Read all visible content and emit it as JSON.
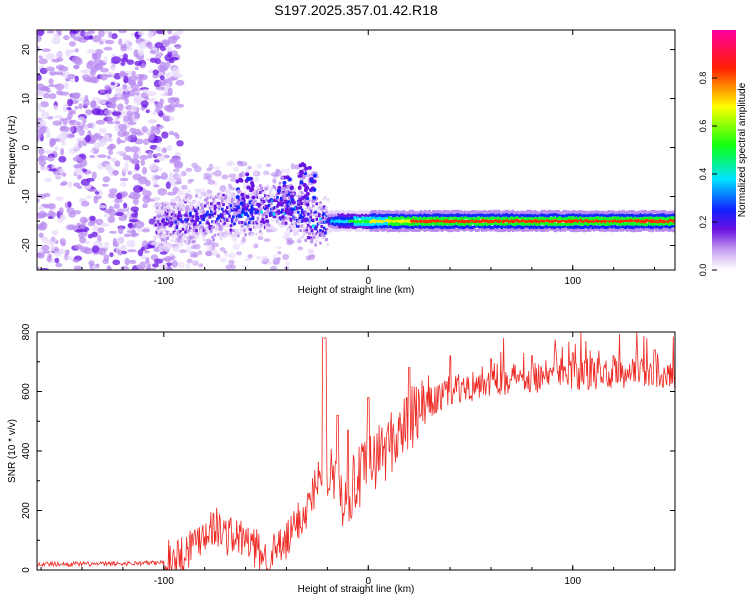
{
  "title": "S197.2025.357.01.42.R18",
  "colors": {
    "snr_line": "#ee2a24",
    "axis": "#000000",
    "background": "#ffffff"
  },
  "chart_data": [
    {
      "type": "heatmap",
      "xlabel": "Height of straight line (km)",
      "ylabel": "Frequency (Hz)",
      "xlim": [
        -162,
        150
      ],
      "ylim": [
        -25,
        24
      ],
      "xticks": [
        -100,
        0,
        100
      ],
      "yticks": [
        20,
        10,
        0,
        -10,
        -20
      ],
      "colorbar": {
        "label": "Normalized spectral amplitude",
        "range": [
          0,
          1
        ],
        "ticks": [
          0,
          0.2,
          0.4,
          0.6,
          0.8
        ],
        "tick_labels": [
          "0.0",
          "0.2",
          "0.4",
          "0.6",
          "0.8"
        ],
        "colormap": [
          "#ffffff",
          "#8a2be2",
          "#0000ff",
          "#00ffff",
          "#00ff00",
          "#ffff00",
          "#ff0000",
          "#ff00aa"
        ]
      },
      "ridge": {
        "description_points_x": [
          -100,
          -80,
          -60,
          -40,
          -30,
          -20,
          0,
          20,
          60,
          100,
          150
        ],
        "frequency_hz": [
          -15,
          -14,
          -13,
          -12,
          -15,
          -15,
          -15,
          -15,
          -15,
          -15,
          -15
        ],
        "peak_amplitude": [
          0.25,
          0.3,
          0.3,
          0.35,
          0.3,
          0.4,
          0.7,
          0.85,
          0.9,
          0.95,
          0.95
        ]
      }
    },
    {
      "type": "line",
      "xlabel": "Height of straight line (km)",
      "ylabel": "SNR (10 * v/v)",
      "xlim": [
        -162,
        150
      ],
      "ylim": [
        0,
        800
      ],
      "xticks": [
        -100,
        0,
        100
      ],
      "yticks": [
        0,
        200,
        400,
        600,
        800
      ],
      "series": [
        {
          "name": "SNR",
          "x": [
            -162,
            -130,
            -100,
            -90,
            -80,
            -75,
            -70,
            -60,
            -50,
            -40,
            -35,
            -30,
            -25,
            -20,
            -15,
            -10,
            -5,
            0,
            10,
            20,
            30,
            40,
            50,
            60,
            80,
            100,
            120,
            140,
            150
          ],
          "y": [
            20,
            20,
            25,
            60,
            130,
            150,
            120,
            100,
            40,
            90,
            160,
            200,
            300,
            350,
            250,
            260,
            300,
            350,
            420,
            500,
            560,
            600,
            620,
            640,
            650,
            655,
            660,
            665,
            665
          ],
          "spike_x": [
            -22,
            -21,
            -15,
            -10,
            0,
            20,
            40,
            60,
            80,
            100,
            120,
            140
          ],
          "spike_y": [
            780,
            780,
            520,
            470,
            580,
            680,
            720,
            710,
            720,
            730,
            720,
            740
          ]
        }
      ]
    }
  ]
}
